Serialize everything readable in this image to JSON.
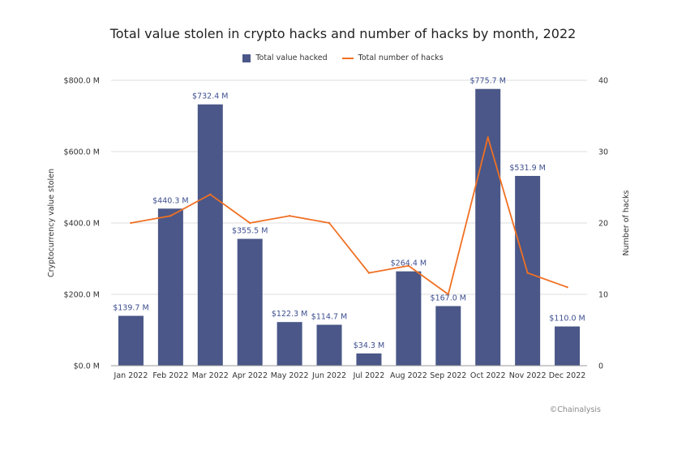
{
  "chart_data": {
    "type": "bar",
    "title": "Total value stolen in crypto hacks and number of hacks by month, 2022",
    "categories": [
      "Jan 2022",
      "Feb 2022",
      "Mar 2022",
      "Apr 2022",
      "May 2022",
      "Jun 2022",
      "Jul 2022",
      "Aug 2022",
      "Sep 2022",
      "Oct 2022",
      "Nov 2022",
      "Dec 2022"
    ],
    "series": [
      {
        "name": "Total value hacked",
        "type": "bar",
        "axis": "left",
        "values": [
          139.7,
          440.3,
          732.4,
          355.5,
          122.3,
          114.7,
          34.3,
          264.4,
          167.0,
          775.7,
          531.9,
          110.0
        ],
        "labels": [
          "$139.7 M",
          "$440.3 M",
          "$732.4 M",
          "$355.5 M",
          "$122.3 M",
          "$114.7 M",
          "$34.3 M",
          "$264.4 M",
          "$167.0 M",
          "$775.7 M",
          "$531.9 M",
          "$110.0 M"
        ],
        "color": "#4a5788"
      },
      {
        "name": "Total number of hacks",
        "type": "line",
        "axis": "right",
        "values": [
          20,
          21,
          24,
          20,
          21,
          20,
          13,
          14,
          10,
          32,
          13,
          11
        ],
        "color": "#f07023"
      }
    ],
    "ylabel": "Cryptocurrency value stolen",
    "y2label": "Number of hacks",
    "ylim": [
      0,
      800
    ],
    "y2lim": [
      0,
      40
    ],
    "yticks": [
      0,
      200,
      400,
      600,
      800
    ],
    "ytick_labels": [
      "$0.0 M",
      "$200.0 M",
      "$400.0 M",
      "$600.0 M",
      "$800.0 M"
    ],
    "y2ticks": [
      0,
      10,
      20,
      30,
      40
    ],
    "y2tick_labels": [
      "0",
      "10",
      "20",
      "30",
      "40"
    ],
    "grid": true,
    "legend": "top-center",
    "label_color": "#3d4e8f",
    "grid_color": "#dddddd"
  },
  "legend": {
    "bar_label": "Total value hacked",
    "line_label": "Total number of hacks"
  },
  "watermark": "©Chainalysis"
}
